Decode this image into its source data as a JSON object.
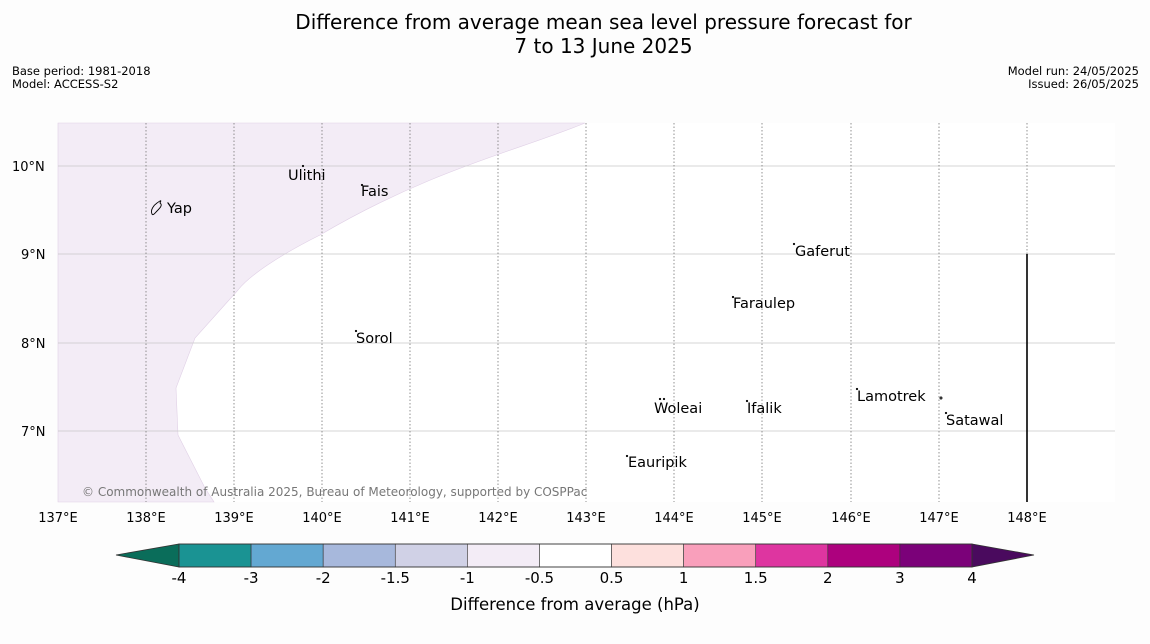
{
  "title": {
    "line1": "Difference from average mean sea level pressure forecast for",
    "line2": "7 to 13 June 2025"
  },
  "meta_left": {
    "base_period": "Base period: 1981-2018",
    "model": "Model: ACCESS-S2"
  },
  "meta_right": {
    "model_run": "Model run: 24/05/2025",
    "issued": "Issued: 26/05/2025"
  },
  "map": {
    "lon_labels": [
      "137°E",
      "138°E",
      "139°E",
      "140°E",
      "141°E",
      "142°E",
      "143°E",
      "144°E",
      "145°E",
      "146°E",
      "147°E",
      "148°E"
    ],
    "lat_labels": [
      "10°N",
      "9°N",
      "8°N",
      "7°N"
    ],
    "places": [
      "Yap",
      "Ulithi",
      "Fais",
      "Gaferut",
      "Faraulep",
      "Sorol",
      "Lamotrek",
      "Woleai",
      "Ifalik",
      "Satawal",
      "Eauripik"
    ],
    "shaded_class": "-1 to -0.5",
    "shade_color": "#f3ecf6",
    "copyright": "© Commonwealth of Australia 2025, Bureau of Meteorology, supported by COSPPac"
  },
  "colorbar": {
    "title": "Difference from average (hPa)",
    "ticks": [
      "-4",
      "-3",
      "-2",
      "-1.5",
      "-1",
      "-0.5",
      "0.5",
      "1",
      "1.5",
      "2",
      "3",
      "4"
    ],
    "low_extend_color": "#0a6d5a",
    "high_extend_color": "#4a0a5e",
    "colors": [
      "#1a9393",
      "#63a8d2",
      "#a7b8dc",
      "#d0d1e6",
      "#f3ecf6",
      "#ffffff",
      "#fde0dd",
      "#f99fbb",
      "#de35a0",
      "#ad017e",
      "#7b0179"
    ]
  }
}
